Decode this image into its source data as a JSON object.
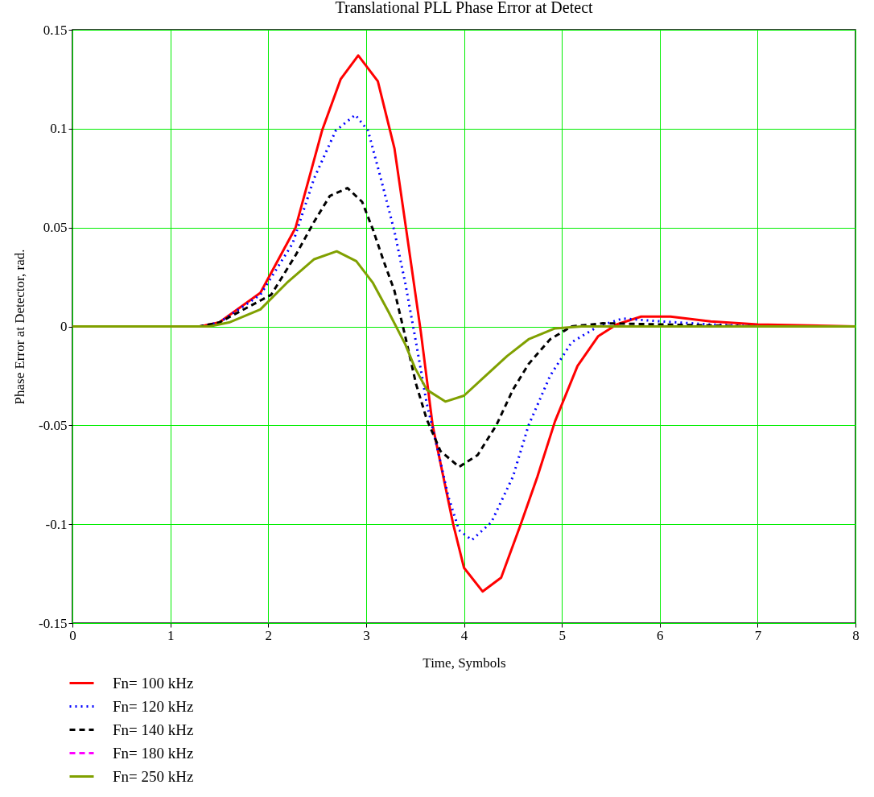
{
  "chart_data": {
    "type": "line",
    "title": "Translational PLL Phase Error at Detect",
    "xlabel": "Time, Symbols",
    "ylabel": "Phase Error at Detector, rad.",
    "xlim": [
      0,
      8
    ],
    "xticks": [
      0,
      1,
      2,
      3,
      4,
      5,
      6,
      7,
      8
    ],
    "ylim": [
      -0.15,
      0.15
    ],
    "yticks": [
      -0.15,
      -0.1,
      -0.05,
      0,
      0.05,
      0.1,
      0.15
    ],
    "grid": true,
    "legend": "bottom left",
    "series": [
      {
        "name": "Fn= 100 kHz",
        "color": "#ff0000",
        "line_style": "solid",
        "x": [
          0,
          1.3,
          1.5,
          1.92,
          2.28,
          2.55,
          2.74,
          2.92,
          3.12,
          3.29,
          3.41,
          3.56,
          3.68,
          3.89,
          4.0,
          4.19,
          4.38,
          4.58,
          4.75,
          4.93,
          5.16,
          5.37,
          5.56,
          5.81,
          6.11,
          6.52,
          7.0,
          8.0
        ],
        "values": [
          0,
          0,
          0.002,
          0.017,
          0.05,
          0.099,
          0.125,
          0.137,
          0.124,
          0.09,
          0.049,
          -0.003,
          -0.05,
          -0.1,
          -0.122,
          -0.134,
          -0.127,
          -0.1,
          -0.076,
          -0.048,
          -0.02,
          -0.005,
          0.001,
          0.005,
          0.005,
          0.0025,
          0.001,
          0
        ]
      },
      {
        "name": "Fn= 120 kHz",
        "color": "#0000ff",
        "line_style": "dotted",
        "x": [
          0,
          1.3,
          1.5,
          1.92,
          2.25,
          2.47,
          2.69,
          2.89,
          3.02,
          3.15,
          3.29,
          3.4,
          3.51,
          3.62,
          3.73,
          3.84,
          3.95,
          4.08,
          4.28,
          4.5,
          4.66,
          4.88,
          5.1,
          5.37,
          5.62,
          6.03,
          6.52,
          7.0,
          8.0
        ],
        "values": [
          0,
          0,
          0.002,
          0.016,
          0.042,
          0.075,
          0.099,
          0.107,
          0.099,
          0.075,
          0.048,
          0.022,
          -0.008,
          -0.039,
          -0.062,
          -0.086,
          -0.103,
          -0.108,
          -0.099,
          -0.076,
          -0.05,
          -0.025,
          -0.008,
          0,
          0.004,
          0.0025,
          0.001,
          0,
          0
        ]
      },
      {
        "name": "Fn= 140 kHz",
        "color": "#000000",
        "line_style": "dashed",
        "x": [
          0,
          1.3,
          1.5,
          2.03,
          2.28,
          2.47,
          2.63,
          2.81,
          2.96,
          3.07,
          3.18,
          3.29,
          3.4,
          3.51,
          3.62,
          3.76,
          3.95,
          4.14,
          4.33,
          4.5,
          4.66,
          4.88,
          5.1,
          5.42,
          6.03,
          7.0,
          8.0
        ],
        "values": [
          0,
          0,
          0.002,
          0.016,
          0.036,
          0.053,
          0.066,
          0.07,
          0.063,
          0.049,
          0.033,
          0.018,
          -0.005,
          -0.029,
          -0.047,
          -0.063,
          -0.071,
          -0.065,
          -0.05,
          -0.032,
          -0.019,
          -0.0065,
          0,
          0.0016,
          0.001,
          0,
          0
        ]
      },
      {
        "name": "Fn= 180 kHz",
        "color": "#ff00ff",
        "line_style": "dashed",
        "values": [
          null
        ]
      },
      {
        "name": "Fn= 250 kHz",
        "color": "#80a000",
        "line_style": "solid",
        "x": [
          0,
          1.4,
          1.6,
          1.92,
          2.19,
          2.47,
          2.7,
          2.9,
          3.07,
          3.23,
          3.4,
          3.5,
          3.62,
          3.81,
          4.0,
          4.22,
          4.44,
          4.66,
          4.93,
          5.2,
          8.0
        ],
        "values": [
          0,
          0,
          0.002,
          0.0086,
          0.022,
          0.034,
          0.038,
          0.033,
          0.022,
          0.0073,
          -0.009,
          -0.021,
          -0.032,
          -0.038,
          -0.035,
          -0.025,
          -0.015,
          -0.0065,
          -0.001,
          0,
          0
        ]
      }
    ]
  }
}
